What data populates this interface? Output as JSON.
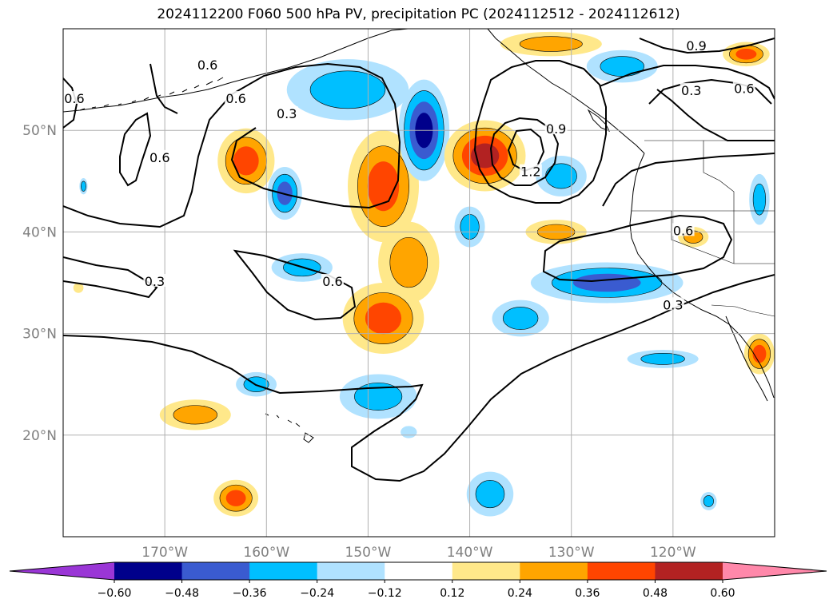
{
  "title": "2024112200 F060 500 hPa PV, precipitation PC (2024112512 - 2024112612)",
  "map": {
    "lon_range": [
      -180,
      -110
    ],
    "lat_range": [
      10,
      60
    ],
    "lat_labels": [
      {
        "lat": 50,
        "text": "50°N"
      },
      {
        "lat": 40,
        "text": "40°N"
      },
      {
        "lat": 30,
        "text": "30°N"
      },
      {
        "lat": 20,
        "text": "20°N"
      }
    ],
    "lon_labels": [
      {
        "lon": -170,
        "text": "170°W"
      },
      {
        "lon": -160,
        "text": "160°W"
      },
      {
        "lon": -150,
        "text": "150°W"
      },
      {
        "lon": -140,
        "text": "140°W"
      },
      {
        "lon": -130,
        "text": "130°W"
      },
      {
        "lon": -120,
        "text": "120°W"
      }
    ],
    "pv_contour_labels": [
      {
        "text": "0.6",
        "lon": -170.5,
        "lat": 47.2
      },
      {
        "text": "0.6",
        "lon": -178.9,
        "lat": 53.0
      },
      {
        "text": "0.6",
        "lon": -165.8,
        "lat": 56.3
      },
      {
        "text": "0.6",
        "lon": -163.0,
        "lat": 53.0
      },
      {
        "text": "0.3",
        "lon": -158.0,
        "lat": 51.5
      },
      {
        "text": "0.3",
        "lon": -171.0,
        "lat": 35.0
      },
      {
        "text": "0.6",
        "lon": -153.5,
        "lat": 35.0
      },
      {
        "text": "0.9",
        "lon": -131.5,
        "lat": 50.0
      },
      {
        "text": "1.2",
        "lon": -134.0,
        "lat": 45.8
      },
      {
        "text": "0.9",
        "lon": -117.7,
        "lat": 58.2
      },
      {
        "text": "0.3",
        "lon": -118.2,
        "lat": 53.8
      },
      {
        "text": "0.6",
        "lon": -113.0,
        "lat": 54.0
      },
      {
        "text": "0.6",
        "lon": -119.0,
        "lat": 40.0
      },
      {
        "text": "0.3",
        "lon": -120.0,
        "lat": 32.7
      }
    ]
  },
  "colorbar": {
    "levels": [
      -0.6,
      -0.48,
      -0.36,
      -0.24,
      -0.12,
      0.12,
      0.24,
      0.36,
      0.48,
      0.6
    ],
    "tick_labels": [
      "−0.60",
      "−0.48",
      "−0.36",
      "−0.24",
      "−0.12",
      "0.12",
      "0.24",
      "0.36",
      "0.48",
      "0.60"
    ],
    "colors": [
      "#9a36d6",
      "#00008b",
      "#3a5bd0",
      "#00bfff",
      "#b0e2ff",
      "#ffffff",
      "#ffe88a",
      "#ffa500",
      "#ff4500",
      "#b22222",
      "#ff88aa"
    ],
    "extend": "both"
  },
  "precip_anomalies": [
    {
      "lon": -162.0,
      "lat": 47.0,
      "rx": 2.8,
      "ry": 3.2,
      "value": 0.42
    },
    {
      "lon": -158.2,
      "lat": 43.8,
      "rx": 1.7,
      "ry": 2.6,
      "value": -0.47
    },
    {
      "lon": -148.5,
      "lat": 44.5,
      "rx": 3.5,
      "ry": 5.5,
      "value": 0.44
    },
    {
      "lon": -146.0,
      "lat": 37.0,
      "rx": 3.0,
      "ry": 4.0,
      "value": 0.3
    },
    {
      "lon": -148.5,
      "lat": 31.5,
      "rx": 4.0,
      "ry": 3.5,
      "value": 0.43
    },
    {
      "lon": -152.0,
      "lat": 54.0,
      "rx": 6.0,
      "ry": 3.0,
      "value": -0.3
    },
    {
      "lon": -144.5,
      "lat": 50.0,
      "rx": 2.5,
      "ry": 5.0,
      "value": -0.52
    },
    {
      "lon": -138.5,
      "lat": 47.5,
      "rx": 4.0,
      "ry": 3.5,
      "value": 0.55
    },
    {
      "lon": -131.0,
      "lat": 45.5,
      "rx": 2.5,
      "ry": 2.0,
      "value": -0.3
    },
    {
      "lon": -140.0,
      "lat": 40.5,
      "rx": 1.5,
      "ry": 2.0,
      "value": -0.3
    },
    {
      "lon": -156.5,
      "lat": 36.5,
      "rx": 3.0,
      "ry": 1.4,
      "value": -0.3
    },
    {
      "lon": -131.5,
      "lat": 40.0,
      "rx": 3.0,
      "ry": 1.2,
      "value": 0.3
    },
    {
      "lon": -118.0,
      "lat": 39.5,
      "rx": 1.5,
      "ry": 1.0,
      "value": 0.3
    },
    {
      "lon": -126.5,
      "lat": 35.0,
      "rx": 7.5,
      "ry": 2.0,
      "value": -0.38
    },
    {
      "lon": -135.0,
      "lat": 31.5,
      "rx": 2.8,
      "ry": 1.8,
      "value": -0.27
    },
    {
      "lon": -121.0,
      "lat": 27.5,
      "rx": 3.5,
      "ry": 0.9,
      "value": -0.27
    },
    {
      "lon": -125.0,
      "lat": 56.3,
      "rx": 3.5,
      "ry": 1.6,
      "value": -0.28
    },
    {
      "lon": -132.0,
      "lat": 58.5,
      "rx": 5.0,
      "ry": 1.2,
      "value": 0.3
    },
    {
      "lon": -112.8,
      "lat": 57.5,
      "rx": 2.3,
      "ry": 1.2,
      "value": 0.36
    },
    {
      "lon": -111.5,
      "lat": 43.2,
      "rx": 1.0,
      "ry": 2.5,
      "value": -0.3
    },
    {
      "lon": -111.5,
      "lat": 28.0,
      "rx": 1.5,
      "ry": 2.0,
      "value": 0.4
    },
    {
      "lon": -161.0,
      "lat": 25.0,
      "rx": 2.0,
      "ry": 1.2,
      "value": -0.3
    },
    {
      "lon": -149.0,
      "lat": 23.8,
      "rx": 3.8,
      "ry": 2.2,
      "value": -0.35
    },
    {
      "lon": -146.0,
      "lat": 20.3,
      "rx": 0.8,
      "ry": 0.6,
      "value": -0.2
    },
    {
      "lon": -167.0,
      "lat": 22.0,
      "rx": 3.5,
      "ry": 1.5,
      "value": 0.3
    },
    {
      "lon": -163.0,
      "lat": 13.8,
      "rx": 2.2,
      "ry": 1.8,
      "value": 0.45
    },
    {
      "lon": -138.0,
      "lat": 14.2,
      "rx": 2.3,
      "ry": 2.2,
      "value": -0.33
    },
    {
      "lon": -116.5,
      "lat": 13.5,
      "rx": 0.8,
      "ry": 0.9,
      "value": -0.3
    },
    {
      "lon": -178.5,
      "lat": 34.5,
      "rx": 0.5,
      "ry": 0.5,
      "value": 0.2
    },
    {
      "lon": -178.0,
      "lat": 44.5,
      "rx": 0.4,
      "ry": 0.8,
      "value": -0.25
    }
  ]
}
